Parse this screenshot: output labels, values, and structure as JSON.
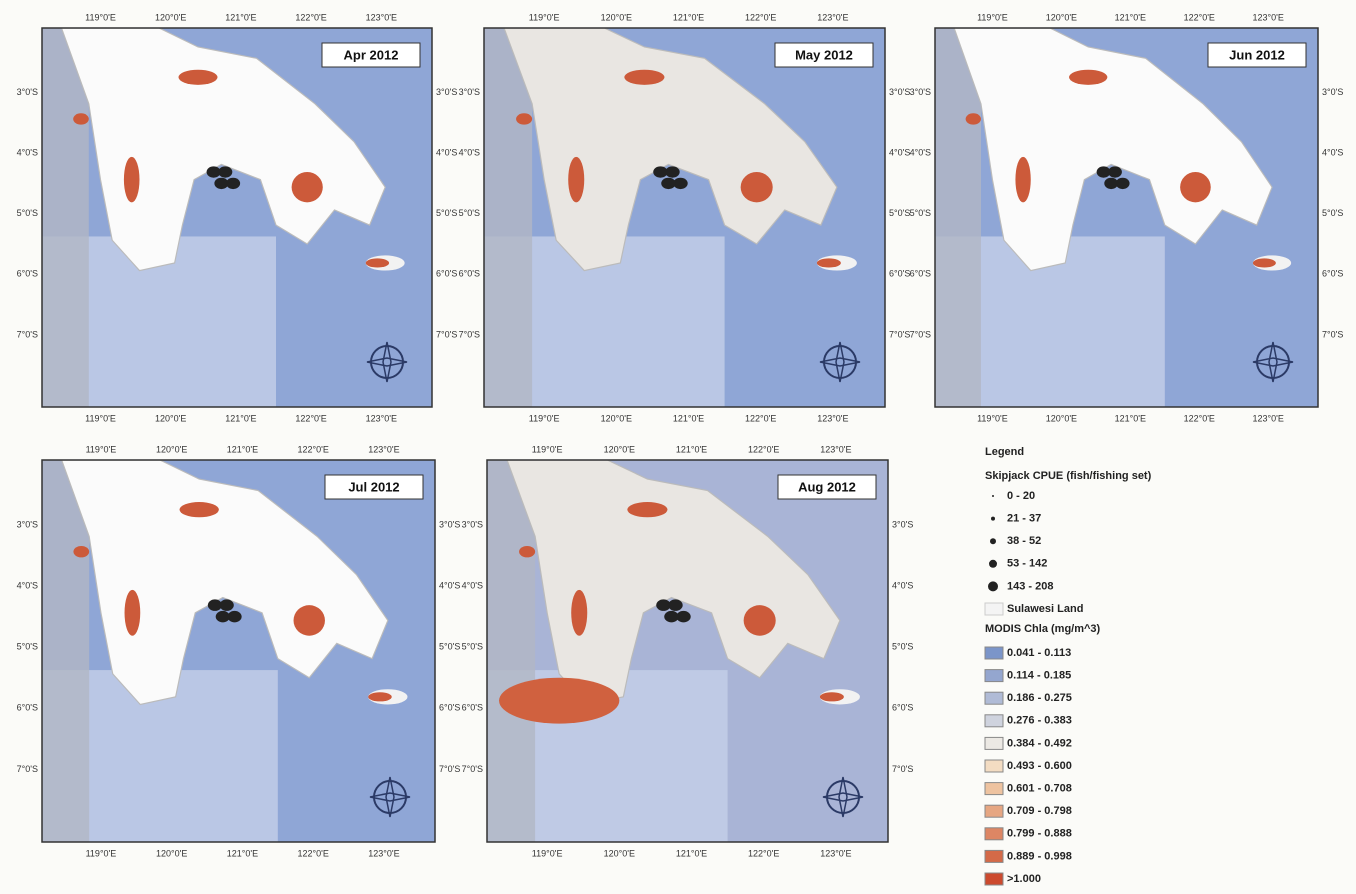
{
  "panels": [
    {
      "title": "Apr 2012"
    },
    {
      "title": "May 2012"
    },
    {
      "title": "Jun 2012"
    },
    {
      "title": "Jul 2012"
    },
    {
      "title": "Aug 2012"
    }
  ],
  "lon_labels": [
    "119°0'E",
    "120°0'E",
    "121°0'E",
    "122°0'E",
    "123°0'E"
  ],
  "lat_labels": [
    "3°0'S",
    "4°0'S",
    "5°0'S",
    "6°0'S",
    "7°0'S"
  ],
  "legend": {
    "title": "Legend",
    "cpue_title": "Skipjack CPUE (fish/fishing set)",
    "cpue_classes": [
      "0 - 20",
      "21 - 37",
      "38 - 52",
      "53 - 142",
      "143 - 208"
    ],
    "land": "Sulawesi Land",
    "chla_title": "MODIS Chla (mg/m^3)",
    "chla_classes": [
      {
        "label": "0.041 - 0.113",
        "color": "#7b95c9"
      },
      {
        "label": "0.114 - 0.185",
        "color": "#94a6cf"
      },
      {
        "label": "0.186 - 0.275",
        "color": "#b0bbd6"
      },
      {
        "label": "0.276 - 0.383",
        "color": "#cfd3de"
      },
      {
        "label": "0.384 - 0.492",
        "color": "#ece9e4"
      },
      {
        "label": "0.493 - 0.600",
        "color": "#f3dcc2"
      },
      {
        "label": "0.601 - 0.708",
        "color": "#eec3a0"
      },
      {
        "label": "0.709 - 0.798",
        "color": "#e6a682"
      },
      {
        "label": "0.799 - 0.888",
        "color": "#dd8664"
      },
      {
        "label": "0.889 - 0.998",
        "color": "#d46a48"
      },
      {
        "label": ">1.000",
        "color": "#cc4a2e"
      }
    ]
  }
}
